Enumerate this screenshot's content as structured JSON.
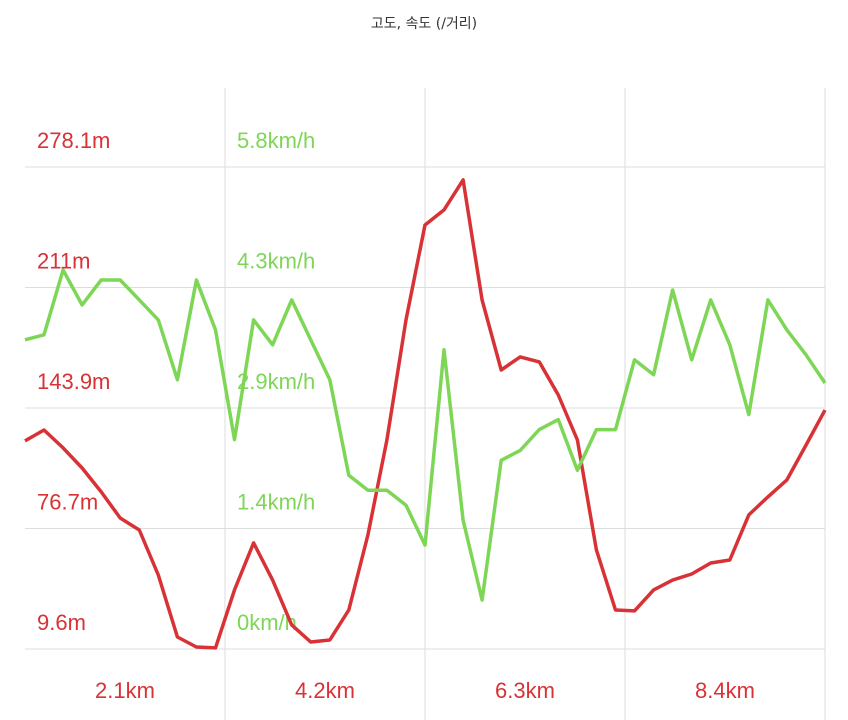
{
  "chart_data": {
    "type": "line",
    "title": "고도, 속도 (/거리)",
    "x": [
      0,
      0.2,
      0.4,
      0.6,
      0.8,
      1.0,
      1.2,
      1.4,
      1.6,
      1.8,
      2.0,
      2.2,
      2.4,
      2.6,
      2.8,
      3.0,
      3.2,
      3.4,
      3.6,
      3.8,
      4.0,
      4.2,
      4.4,
      4.6,
      4.8,
      5.0,
      5.2,
      5.4,
      5.6,
      5.8,
      6.0,
      6.2,
      6.4,
      6.6,
      6.8,
      7.0,
      7.2,
      7.4,
      7.6,
      7.8,
      8.0,
      8.2,
      8.4
    ],
    "series": [
      {
        "name": "고도",
        "color": "#d83236",
        "values": [
          125.5,
          131.6,
          121.6,
          110.4,
          97.1,
          82.6,
          75.9,
          50.8,
          16.3,
          10.7,
          10.2,
          42.5,
          68.7,
          48.0,
          23.0,
          13.5,
          14.6,
          31.3,
          73.1,
          126.0,
          192.9,
          245.8,
          254.2,
          270.9,
          204.0,
          165.0,
          172.3,
          169.5,
          151.1,
          126.0,
          64.8,
          31.3,
          30.8,
          42.5,
          48.0,
          51.4,
          57.5,
          59.2,
          84.3,
          94.3,
          103.8,
          123.2,
          142.7
        ]
      },
      {
        "name": "속도",
        "color": "#7ed656",
        "axis": "y2",
        "values": [
          3.72,
          3.78,
          4.56,
          4.14,
          4.44,
          4.44,
          4.2,
          3.96,
          3.24,
          4.44,
          3.84,
          2.52,
          3.96,
          3.66,
          4.2,
          3.72,
          3.24,
          2.09,
          1.91,
          1.91,
          1.73,
          1.25,
          3.6,
          1.55,
          0.59,
          2.27,
          2.39,
          2.64,
          2.76,
          2.15,
          2.64,
          2.64,
          3.48,
          3.3,
          4.32,
          3.48,
          4.2,
          3.66,
          2.82,
          4.2,
          3.84,
          3.54,
          3.2
        ]
      }
    ],
    "xlim": [
      0,
      8.4
    ],
    "xticks": [
      {
        "value": 2.1,
        "label": "2.1km"
      },
      {
        "value": 4.2,
        "label": "4.2km"
      },
      {
        "value": 6.3,
        "label": "6.3km"
      },
      {
        "value": 8.4,
        "label": "8.4km"
      }
    ],
    "ylim": [
      9.6,
      322.1
    ],
    "yticks": [
      {
        "value": 9.6,
        "label": "9.6m"
      },
      {
        "value": 76.725,
        "label": "76.7m"
      },
      {
        "value": 143.85,
        "label": "143.9m"
      },
      {
        "value": 210.975,
        "label": "211m"
      },
      {
        "value": 278.1,
        "label": "278.1m"
      }
    ],
    "y2lim": [
      0,
      6.75
    ],
    "y2ticks": [
      {
        "value": 0,
        "label": "0km/h"
      },
      {
        "value": 1.45,
        "label": "1.4km/h"
      },
      {
        "value": 2.9,
        "label": "2.9km/h"
      },
      {
        "value": 4.35,
        "label": "4.3km/h"
      },
      {
        "value": 5.8,
        "label": "5.8km/h"
      }
    ],
    "grid": true
  }
}
